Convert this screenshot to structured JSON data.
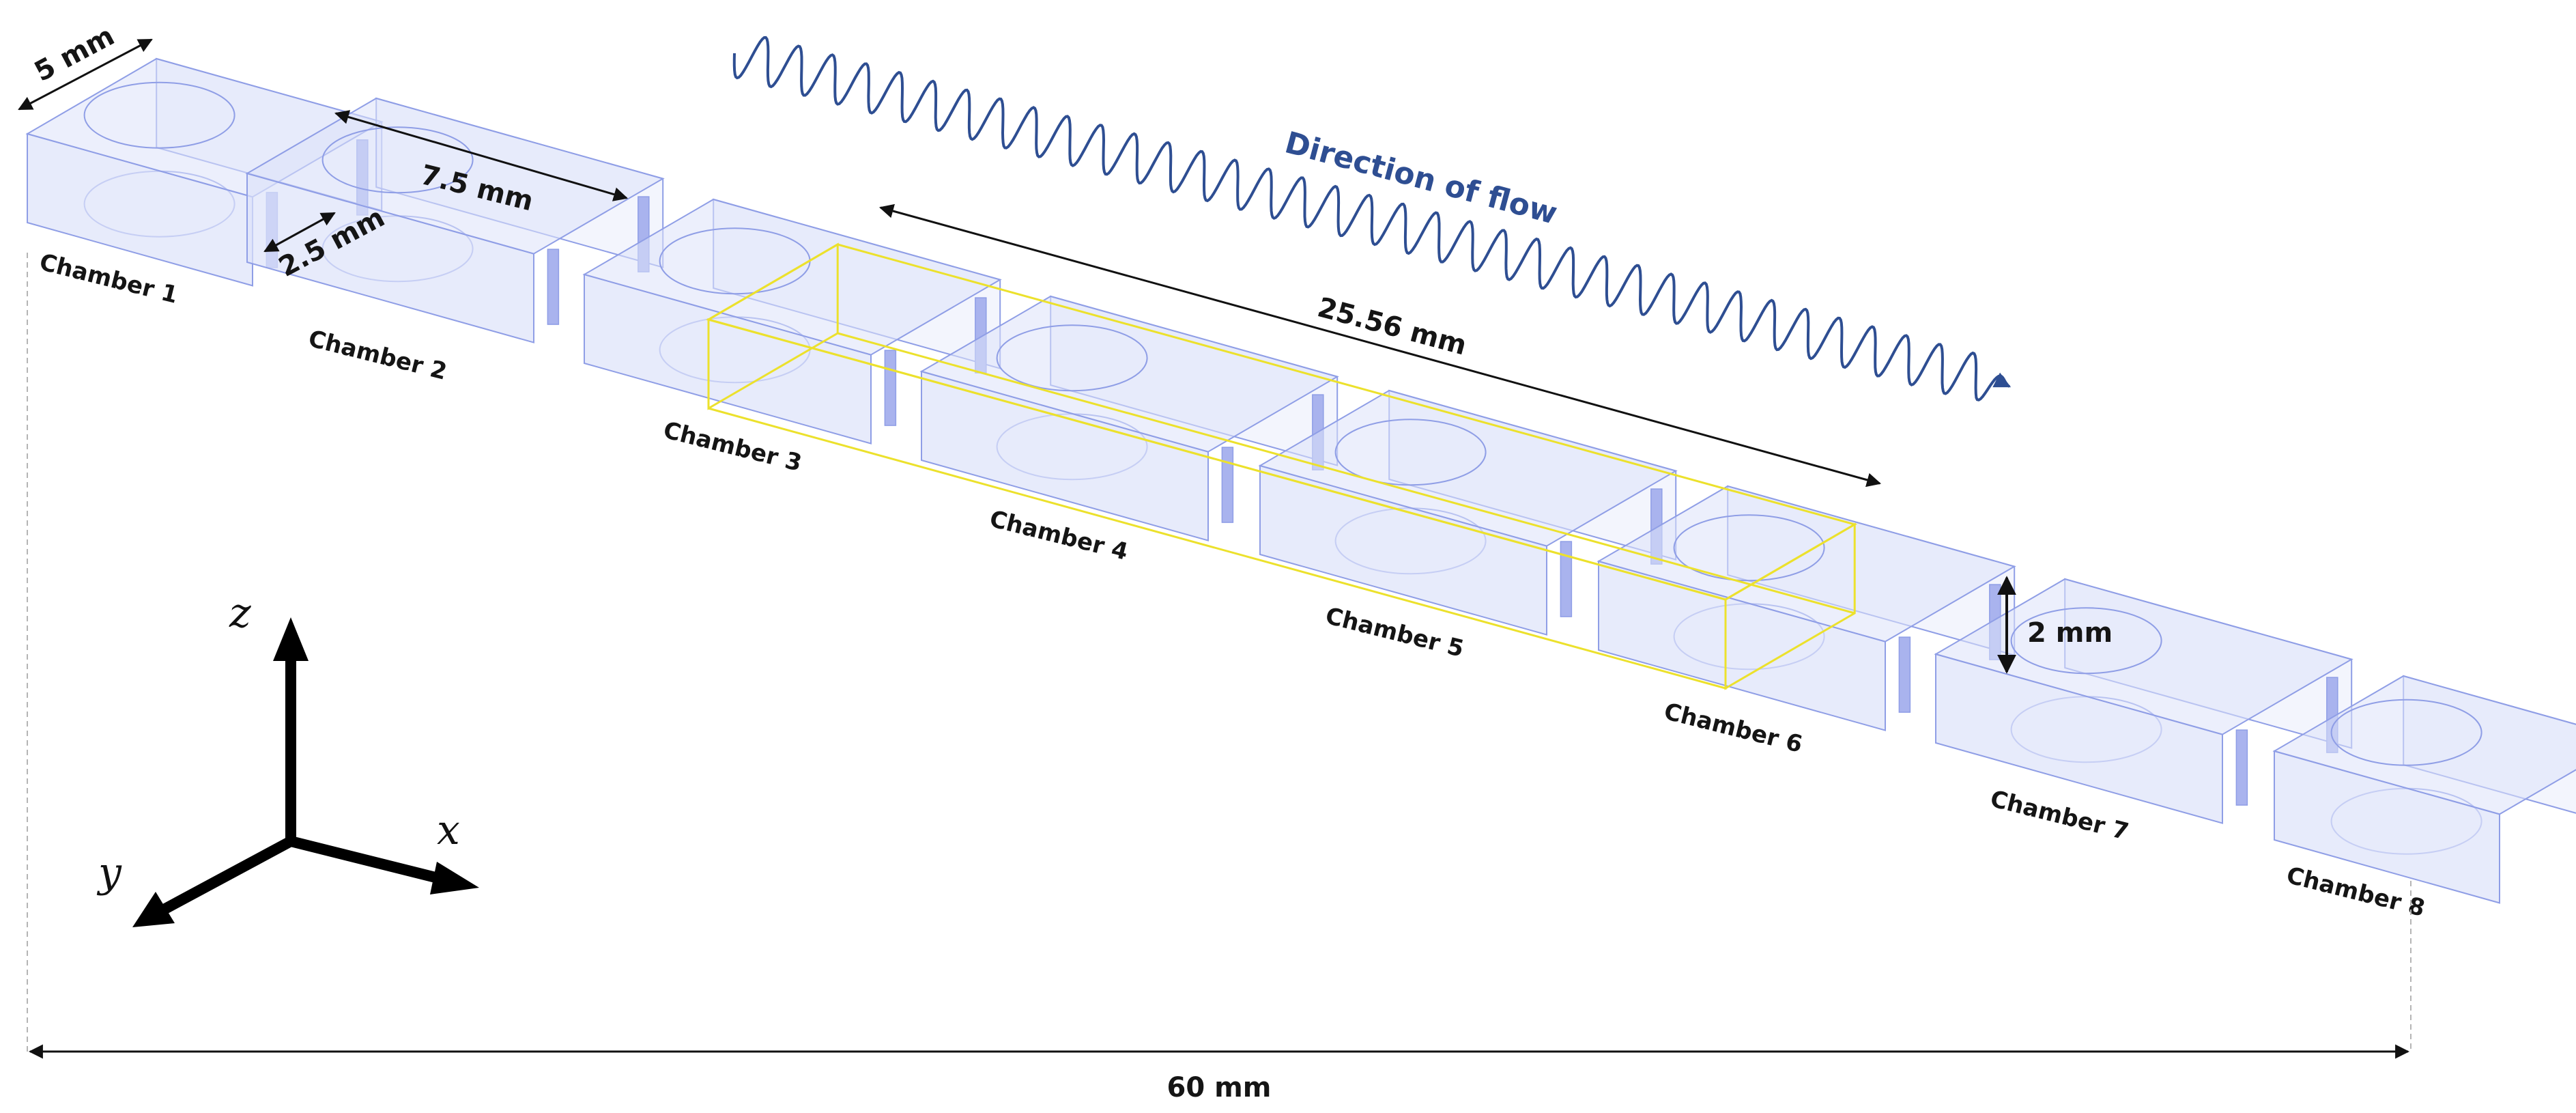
{
  "colors": {
    "body_fill": "#dde2fa",
    "body_stroke": "#8f9ee6",
    "inlet_fill": "#a9b3ee",
    "highlight": "#ece12c",
    "flow": "#2e4e92",
    "dimension": "#111111",
    "axis": "#000000"
  },
  "chambers": [
    {
      "label": "Chamber 1"
    },
    {
      "label": "Chamber 2"
    },
    {
      "label": "Chamber 3"
    },
    {
      "label": "Chamber 4"
    },
    {
      "label": "Chamber 5"
    },
    {
      "label": "Chamber 6"
    },
    {
      "label": "Chamber 7"
    },
    {
      "label": "Chamber 8"
    }
  ],
  "dimensions": {
    "width": "5 mm",
    "chamber_length": "7.5 mm",
    "channel_gap": "2.5 mm",
    "highlight_length": "25.56 mm",
    "height": "2 mm",
    "total_length": "60 mm"
  },
  "flow": {
    "label": "Direction of flow"
  },
  "axes": {
    "x": "x",
    "y": "y",
    "z": "z"
  }
}
